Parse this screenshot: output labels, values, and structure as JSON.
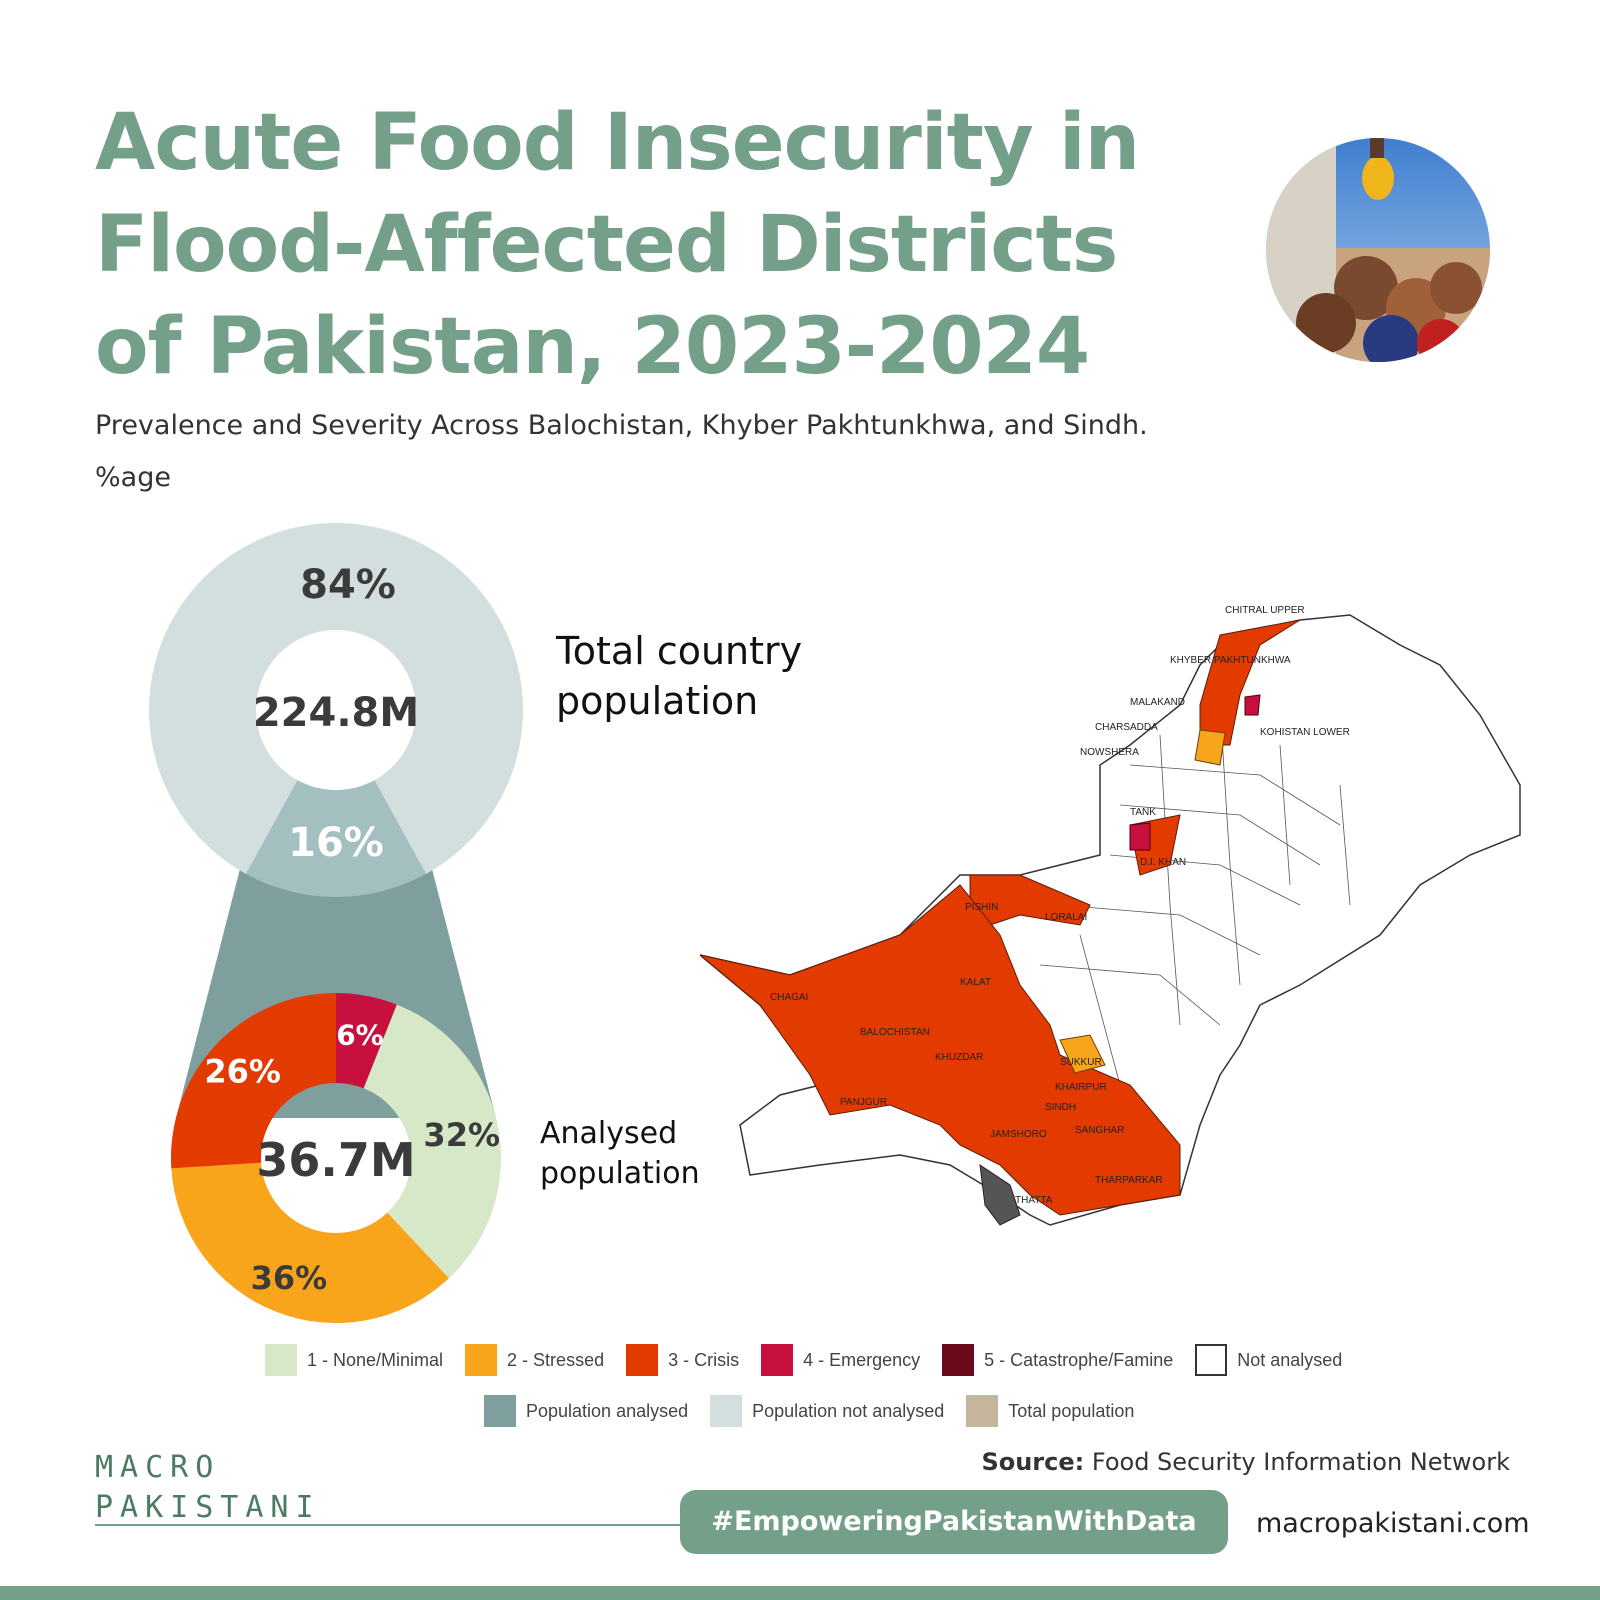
{
  "title": {
    "line1": "Acute Food Insecurity in",
    "line2": "Flood-Affected Districts",
    "line3": "of Pakistan, 2023-2024"
  },
  "subtitle": "Prevalence and Severity Across Balochistan, Khyber Pakhtunkhwa, and Sindh.",
  "unit": "%age",
  "chart_data": [
    {
      "type": "pie",
      "center_label": "224.8M",
      "side_label": "Total country population",
      "slices": [
        {
          "label": "Population not analysed",
          "value": 84,
          "display": "84%",
          "color": "#d3dfdf"
        },
        {
          "label": "Population analysed",
          "value": 16,
          "display": "16%",
          "color": "#a3bfbf"
        }
      ]
    },
    {
      "type": "pie",
      "center_label": "36.7M",
      "side_label": "Analysed population",
      "slices": [
        {
          "label": "1 - None/Minimal",
          "value": 32,
          "display": "32%",
          "color": "#d7e8c8"
        },
        {
          "label": "2 - Stressed",
          "value": 36,
          "display": "36%",
          "color": "#f8a51c"
        },
        {
          "label": "3 - Crisis",
          "value": 26,
          "display": "26%",
          "color": "#e33a00"
        },
        {
          "label": "4 - Emergency",
          "value": 6,
          "display": "6%",
          "color": "#c8103e"
        }
      ]
    }
  ],
  "side_labels": {
    "total_line1": "Total country",
    "total_line2": "population",
    "analysed_line1": "Analysed",
    "analysed_line2": "population"
  },
  "map": {
    "labels": [
      "CHITRAL UPPER",
      "KHYBER PAKHTUNKHWA",
      "MALAKAND",
      "CHARSADDA",
      "NOWSHERA",
      "KOHISTAN LOWER",
      "TANK",
      "D.I. KHAN",
      "PISHIN",
      "LORALAI",
      "CHAGAI",
      "KALAT",
      "BALOCHISTAN",
      "KHUZDAR",
      "PANJGUR",
      "SUKKUR",
      "KHAIRPUR",
      "SINDH",
      "JAMSHORO",
      "SANGHAR",
      "THARPARKAR",
      "THATTA"
    ],
    "crisis_color": "#e33a00",
    "stressed_color": "#f8a51c",
    "emergency_color": "#c8103e"
  },
  "legend": {
    "row1": [
      {
        "label": "1 - None/Minimal",
        "color": "#d7e8c8"
      },
      {
        "label": "2 - Stressed",
        "color": "#f8a51c"
      },
      {
        "label": "3 - Crisis",
        "color": "#e33a00"
      },
      {
        "label": "4 - Emergency",
        "color": "#c8103e"
      },
      {
        "label": "5 - Catastrophe/Famine",
        "color": "#6a0a1a"
      },
      {
        "label": "Not analysed",
        "color": "#ffffff"
      }
    ],
    "row2": [
      {
        "label": "Population analysed",
        "color": "#7f9e9e"
      },
      {
        "label": "Population not analysed",
        "color": "#d3dfdf"
      },
      {
        "label": "Total population",
        "color": "#c4b59c"
      }
    ]
  },
  "footer": {
    "source_bold": "Source:",
    "source_text": "Food Security Information Network",
    "logo_line1": "MACRO",
    "logo_line2": "PAKISTANI",
    "hashtag": "#EmpoweringPakistanWithData",
    "website": "macropakistani.com"
  },
  "colors": {
    "accent": "#74a08a",
    "funnel": "#7f9e9e"
  }
}
